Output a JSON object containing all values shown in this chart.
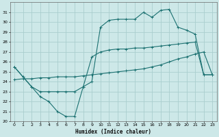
{
  "xlabel": "Humidex (Indice chaleur)",
  "bg_color": "#cde8e8",
  "grid_color": "#aacece",
  "line_color": "#1a7070",
  "xlim": [
    -0.5,
    23.5
  ],
  "ylim": [
    20,
    32
  ],
  "xticks": [
    0,
    1,
    2,
    3,
    4,
    5,
    6,
    7,
    8,
    9,
    10,
    11,
    12,
    13,
    14,
    15,
    16,
    17,
    18,
    19,
    20,
    21,
    22,
    23
  ],
  "yticks": [
    20,
    21,
    22,
    23,
    24,
    25,
    26,
    27,
    28,
    29,
    30,
    31
  ],
  "line1_x": [
    0,
    1,
    2,
    3,
    4,
    5,
    6,
    7,
    8,
    9,
    10,
    11,
    12,
    13,
    14,
    15,
    16,
    17,
    18,
    19,
    20,
    21,
    22,
    23
  ],
  "line1_y": [
    25.5,
    24.5,
    23.5,
    22.5,
    22.0,
    21.0,
    20.5,
    20.5,
    23.5,
    26.5,
    27.0,
    27.2,
    27.3,
    27.3,
    27.4,
    27.4,
    27.5,
    27.6,
    27.7,
    27.8,
    27.9,
    28.0,
    24.7,
    24.7
  ],
  "line2_x": [
    0,
    1,
    2,
    3,
    4,
    5,
    6,
    7,
    8,
    9,
    10,
    11,
    12,
    13,
    14,
    15,
    16,
    17,
    18,
    19,
    20,
    21,
    22,
    23
  ],
  "line2_y": [
    25.5,
    24.5,
    23.5,
    23.0,
    23.0,
    23.0,
    23.0,
    23.0,
    23.5,
    24.0,
    29.5,
    30.2,
    30.3,
    30.3,
    30.3,
    31.0,
    30.5,
    31.2,
    31.3,
    29.5,
    29.2,
    28.8,
    24.7,
    24.7
  ],
  "line3_x": [
    0,
    1,
    2,
    3,
    4,
    5,
    6,
    7,
    8,
    9,
    10,
    11,
    12,
    13,
    14,
    15,
    16,
    17,
    18,
    19,
    20,
    21,
    22,
    23
  ],
  "line3_y": [
    24.2,
    24.3,
    24.3,
    24.4,
    24.4,
    24.5,
    24.5,
    24.5,
    24.6,
    24.7,
    24.8,
    24.9,
    25.0,
    25.1,
    25.2,
    25.3,
    25.5,
    25.7,
    26.0,
    26.3,
    26.5,
    26.8,
    27.0,
    24.7
  ]
}
